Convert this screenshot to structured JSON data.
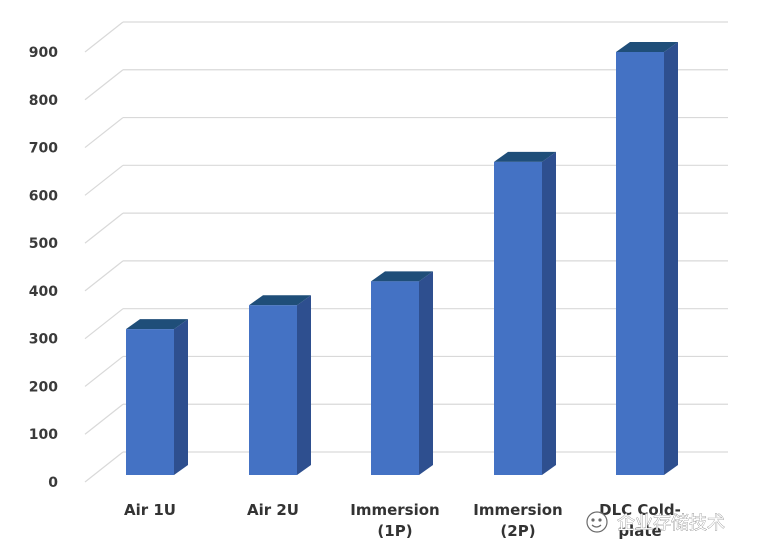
{
  "chart_data": {
    "type": "bar",
    "title": "",
    "xlabel": "",
    "ylabel": "",
    "ylim": [
      0,
      900
    ],
    "yticks": [
      0,
      100,
      200,
      300,
      400,
      500,
      600,
      700,
      800,
      900
    ],
    "grid": true,
    "style": "3d-column",
    "categories": [
      [
        "Air 1U"
      ],
      [
        "Air 2U"
      ],
      [
        "Immersion",
        "(1P)"
      ],
      [
        "Immersion",
        "(2P)"
      ],
      [
        "DLC Cold-",
        "plate"
      ]
    ],
    "values": [
      320,
      370,
      420,
      670,
      900
    ],
    "colors": {
      "front": "#4472c4",
      "side": "#2e4f8f",
      "top": "#1f4e79",
      "grid": "#d9d9d9"
    }
  },
  "watermark": {
    "text": "企业存储技术",
    "icon": "wechat-icon"
  }
}
